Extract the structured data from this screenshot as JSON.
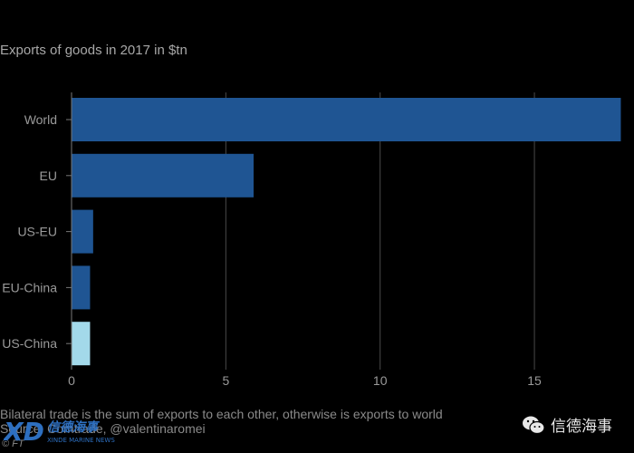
{
  "header": {
    "title": "Exports of goods in 2017 in $tn"
  },
  "footer": {
    "note": "Bilateral trade is the sum of exports to each other, otherwise is exports to world",
    "source": "Source: Comtrade, @valentinaromei",
    "credit": "© FT"
  },
  "watermark": {
    "brand_cn": "信德海事",
    "brand_en": "XINDE MARINE NEWS",
    "wechat_name": "信德海事"
  },
  "colors": {
    "bar": "#1f5593",
    "bar_highlight": "#a3d9ea",
    "grid": "#4a4a4a",
    "axis": "#777777",
    "text": "#9a9a9a"
  },
  "chart_data": {
    "type": "bar",
    "orientation": "horizontal",
    "title": "Exports of goods in 2017 in $tn",
    "categories": [
      "World",
      "EU",
      "US-EU",
      "EU-China",
      "US-China"
    ],
    "values": [
      17.8,
      5.9,
      0.7,
      0.6,
      0.6
    ],
    "highlight": [
      "US-China"
    ],
    "xlim": [
      0,
      18
    ],
    "xticks": [
      0,
      5,
      10,
      15
    ],
    "grid": "vertical"
  }
}
